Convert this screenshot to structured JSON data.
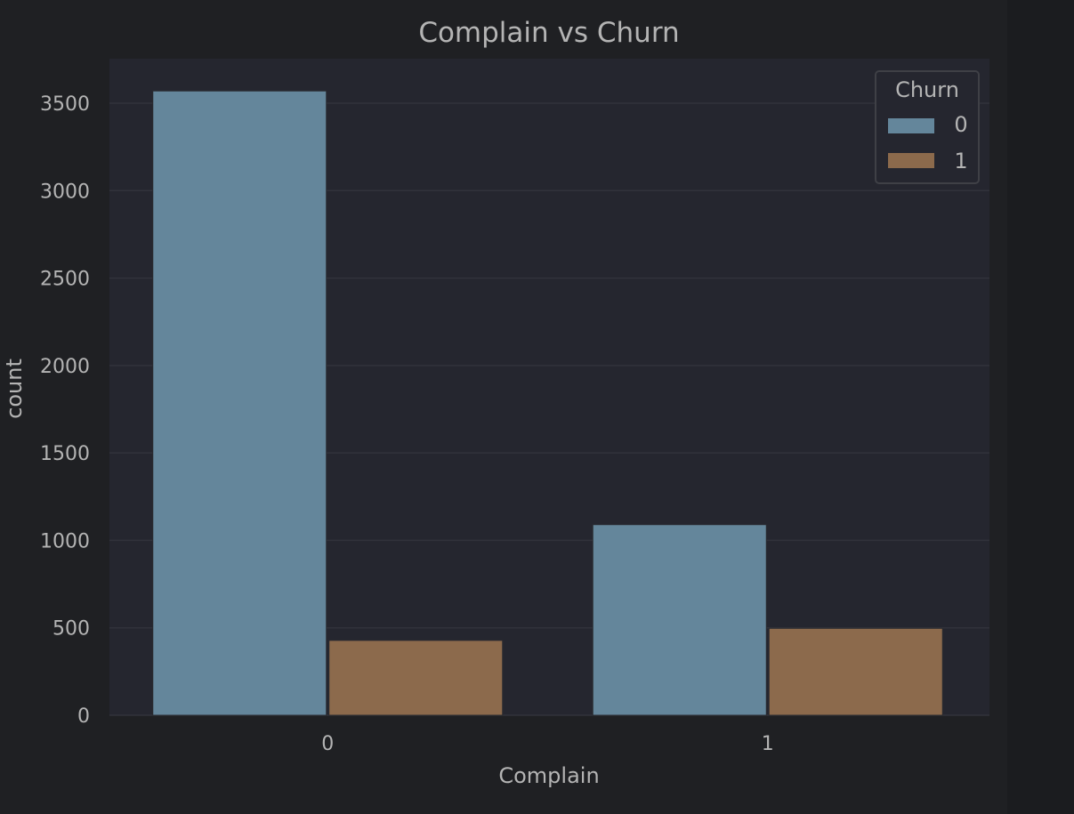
{
  "chart_data": {
    "type": "bar",
    "title": "Complain vs Churn",
    "xlabel": "Complain",
    "ylabel": "count",
    "categories": [
      "0",
      "1"
    ],
    "series": [
      {
        "name": "0",
        "values": [
          3570,
          1090
        ],
        "color": "#64869b"
      },
      {
        "name": "1",
        "values": [
          428,
          497
        ],
        "color": "#8c6a4c"
      }
    ],
    "yticks": [
      0,
      500,
      1000,
      1500,
      2000,
      2500,
      3000,
      3500
    ],
    "ylim": [
      0,
      3750
    ],
    "grid": true,
    "legend": {
      "title": "Churn",
      "position": "top-right"
    }
  },
  "colors": {
    "background": "#1f2023",
    "plot_background": "#25262f",
    "grid": "#31323b",
    "text": "#b4b4b4",
    "legend_border": "#3f4046"
  }
}
